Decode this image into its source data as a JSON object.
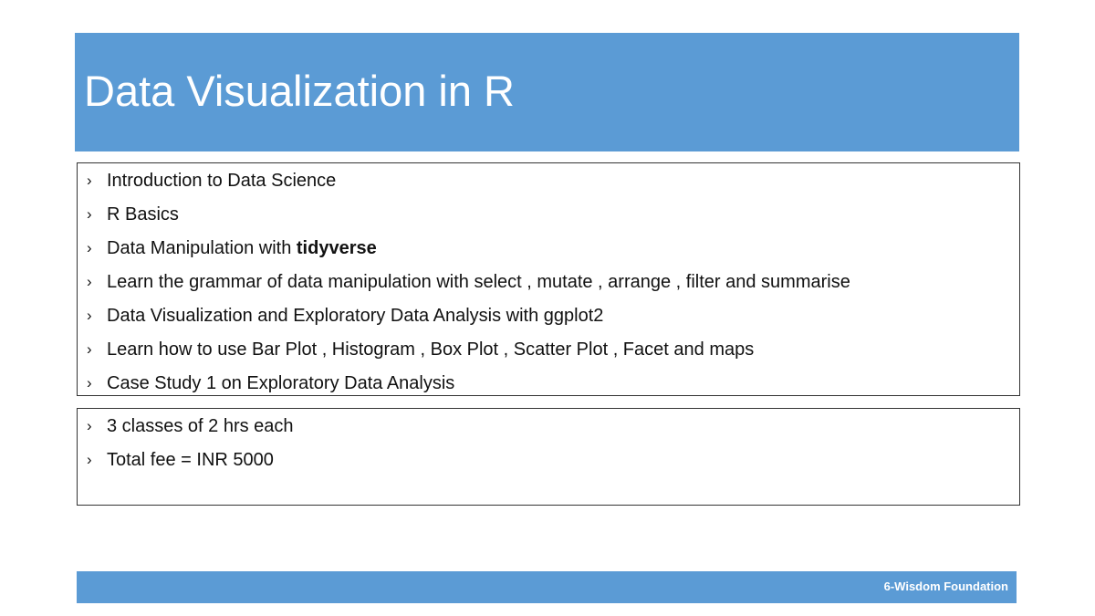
{
  "slide": {
    "title": "Data Visualization in R",
    "accent_color": "#5b9bd5",
    "bullet_icon": "chevron-right-icon",
    "topics": [
      {
        "text": "Introduction to Data Science",
        "bold": ""
      },
      {
        "text": "R Basics",
        "bold": ""
      },
      {
        "text": "Data Manipulation with ",
        "bold": "tidyverse"
      },
      {
        "text": "Learn the grammar of data manipulation with select , mutate , arrange , filter and summarise",
        "bold": ""
      },
      {
        "text": "Data Visualization and Exploratory Data Analysis with ggplot2",
        "bold": ""
      },
      {
        "text": "Learn how to use Bar Plot , Histogram , Box Plot , Scatter Plot , Facet and maps",
        "bold": ""
      },
      {
        "text": "Case Study 1 on Exploratory Data Analysis",
        "bold": ""
      }
    ],
    "details": [
      {
        "text": "3 classes of 2 hrs each"
      },
      {
        "text": "Total fee = INR 5000"
      }
    ],
    "footer": "6-Wisdom Foundation"
  }
}
